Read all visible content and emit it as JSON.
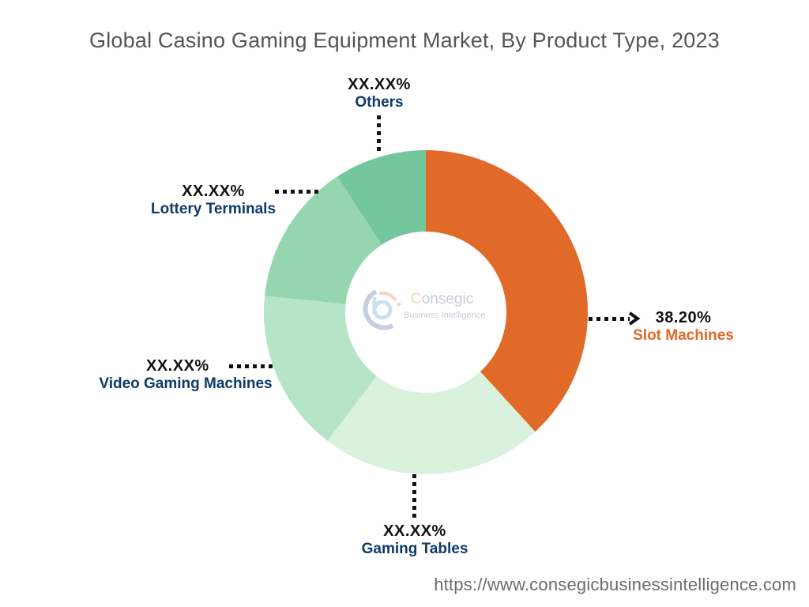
{
  "title": "Global Casino Gaming Equipment Market, By Product Type, 2023",
  "watermark": {
    "brand": "Consegic",
    "brand_first": "C",
    "brand_rest": "onsegic",
    "tagline": "Business Intelligence"
  },
  "source_url": "https://www.consegicbusinessintelligence.com",
  "colors": {
    "slot_machines": "#e26a29",
    "gaming_tables": "#daf2dd",
    "video_gaming_machines": "#b5e4c8",
    "lottery_terminals": "#95d6b1",
    "others": "#74c69e",
    "label_dark": "#0e3a6b",
    "label_orange": "#e06a2a"
  },
  "labels": {
    "slot_machines": {
      "pct": "38.20%",
      "name": "Slot Machines"
    },
    "gaming_tables": {
      "pct": "XX.XX%",
      "name": "Gaming Tables"
    },
    "video_gaming_machines": {
      "pct": "XX.XX%",
      "name": "Video Gaming Machines"
    },
    "lottery_terminals": {
      "pct": "XX.XX%",
      "name": "Lottery Terminals"
    },
    "others": {
      "pct": "XX.XX%",
      "name": "Others"
    }
  },
  "chart_data": {
    "type": "pie",
    "variant": "donut",
    "title": "Global Casino Gaming Equipment Market, By Product Type, 2023",
    "categories": [
      "Slot Machines",
      "Gaming Tables",
      "Video Gaming Machines",
      "Lottery Terminals",
      "Others"
    ],
    "values": [
      38.2,
      22.2,
      16.2,
      14.2,
      9.2
    ],
    "value_labels": [
      "38.20%",
      "XX.XX%",
      "XX.XX%",
      "XX.XX%",
      "XX.XX%"
    ],
    "values_note": "Only 38.20% is shown; other values estimated from slice angles",
    "colors": [
      "#e26a29",
      "#daf2dd",
      "#b5e4c8",
      "#95d6b1",
      "#74c69e"
    ],
    "start_angle": "12 o'clock, clockwise",
    "legend": "none (direct labels)"
  }
}
